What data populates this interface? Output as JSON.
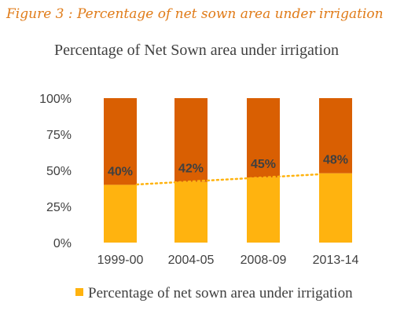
{
  "figure_caption": "Figure 3 : Percentage of net sown area under irrigation",
  "chart_data": {
    "type": "bar",
    "stacked": true,
    "title": "Percentage of Net Sown area under irrigation",
    "categories": [
      "1999-00",
      "2004-05",
      "2008-09",
      "2013-14"
    ],
    "series": [
      {
        "name": "Percentage of net sown area under irrigation",
        "values": [
          40,
          42,
          45,
          48
        ],
        "color": "#ffb30f"
      },
      {
        "values": [
          60,
          58,
          55,
          52
        ],
        "color": "#d95f02"
      }
    ],
    "data_labels": [
      "40%",
      "42%",
      "45%",
      "48%"
    ],
    "y_ticks": [
      "0%",
      "25%",
      "50%",
      "75%",
      "100%"
    ],
    "ylim": [
      0,
      100
    ],
    "trendline": {
      "style": "dotted",
      "color": "#ffb30f"
    },
    "grid": false,
    "legend_position": "bottom"
  }
}
